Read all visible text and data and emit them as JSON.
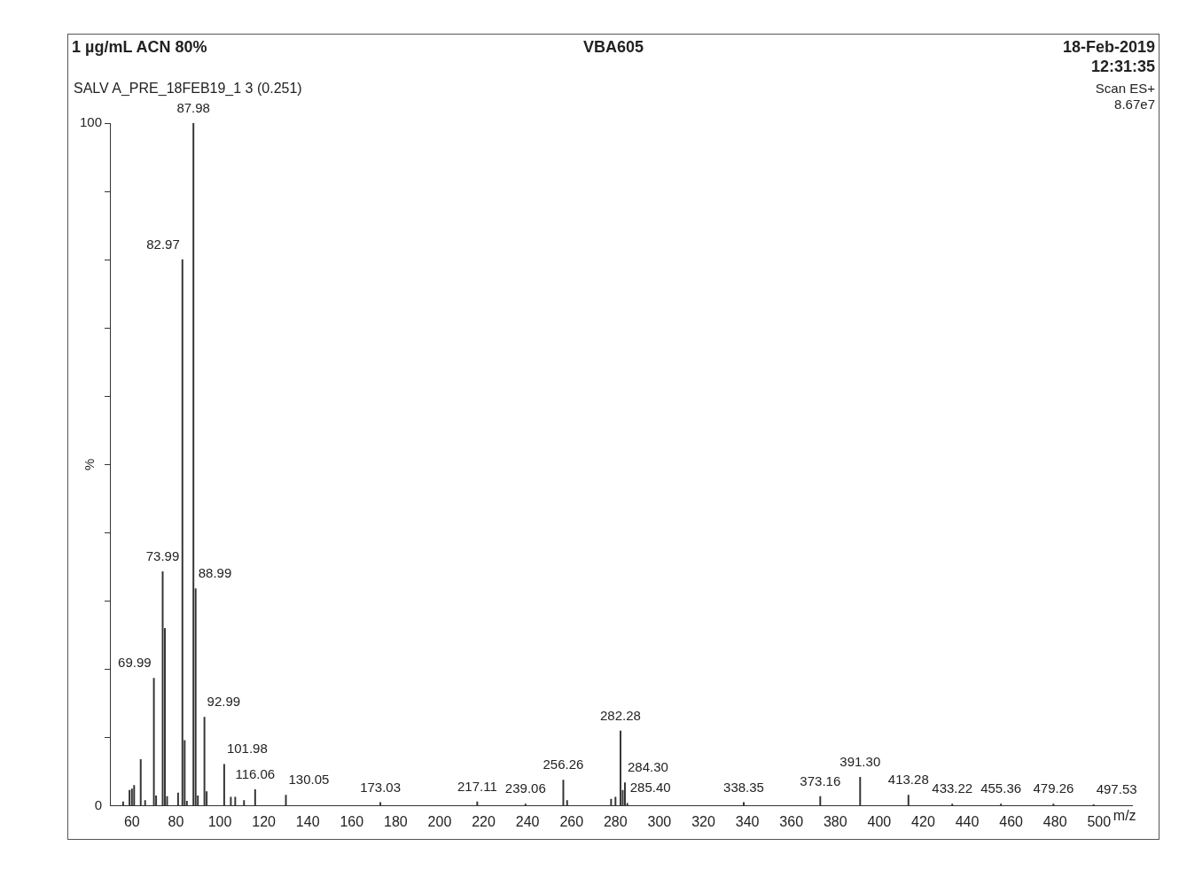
{
  "chart_data": {
    "type": "bar",
    "title": "1 µg/mL ACN 80%",
    "subtitle": "VBA605",
    "xlabel": "m/z",
    "ylabel": "%",
    "x": [
      56,
      58.9,
      60,
      61,
      64,
      66,
      69.99,
      71,
      73.99,
      75,
      76,
      81,
      82.97,
      84,
      85,
      87.98,
      88.99,
      90,
      92.99,
      94,
      101.98,
      105,
      107,
      111,
      116.06,
      130.05,
      173.03,
      217.11,
      239.06,
      256.26,
      258,
      278,
      280,
      282.28,
      283.3,
      284.3,
      285.4,
      338.35,
      373.16,
      391.3,
      413.28,
      433.22,
      455.36,
      479.26,
      497.53
    ],
    "values": [
      0.6,
      2.3,
      2.5,
      3,
      6.8,
      0.8,
      18.7,
      1.5,
      34.3,
      26,
      1.4,
      1.9,
      80,
      9.6,
      0.7,
      100,
      31.8,
      1.5,
      13,
      2.1,
      6.1,
      1.3,
      1.3,
      0.8,
      2.4,
      1.6,
      0.5,
      0.6,
      0.3,
      3.8,
      0.8,
      1,
      1.3,
      11,
      2.3,
      3.4,
      0.4,
      0.5,
      1.4,
      4.2,
      1.6,
      0.3,
      0.3,
      0.3,
      0.2
    ],
    "color": "#333333",
    "xlim": [
      50,
      515
    ],
    "xticks": [
      60,
      80,
      100,
      120,
      140,
      160,
      180,
      200,
      220,
      240,
      260,
      280,
      300,
      320,
      340,
      360,
      380,
      400,
      420,
      440,
      460,
      480,
      500
    ],
    "ylim": [
      0,
      100
    ],
    "yticks": [
      0,
      {
        "value": 10,
        "label": null
      },
      {
        "value": 20,
        "label": null
      },
      {
        "value": 30,
        "label": null
      },
      {
        "value": 40,
        "label": null
      },
      {
        "value": 50,
        "label": null
      },
      {
        "value": 60,
        "label": null
      },
      {
        "value": 70,
        "label": null
      },
      {
        "value": 80,
        "label": null
      },
      {
        "value": 90,
        "label": null
      },
      100
    ],
    "grid": false,
    "legend": false,
    "annotations": [
      "18-Feb-2019",
      "12:31:35",
      "SALV A_PRE_18FEB19_1 3 (0.251)",
      "Scan ES+",
      "8.67e7",
      {
        "text": "87.98",
        "x": 87.98,
        "y": 100
      },
      {
        "text": "82.97",
        "x": 82.97,
        "y": 80
      },
      {
        "text": "73.99",
        "x": 73.99,
        "y": 34.3
      },
      {
        "text": "88.99",
        "x": 88.99,
        "y": 31.8
      },
      {
        "text": "69.99",
        "x": 69.99,
        "y": 18.7
      },
      {
        "text": "92.99",
        "x": 92.99,
        "y": 13
      },
      {
        "text": "101.98",
        "x": 101.98,
        "y": 6.1
      },
      {
        "text": "116.06",
        "x": 116.06,
        "y": 2.4
      },
      {
        "text": "130.05",
        "x": 130.05,
        "y": 1.6
      },
      {
        "text": "173.03",
        "x": 173.03,
        "y": 0.5
      },
      {
        "text": "217.11",
        "x": 217.11,
        "y": 0.6
      },
      {
        "text": "239.06",
        "x": 239.06,
        "y": 0.3
      },
      {
        "text": "256.26",
        "x": 256.26,
        "y": 3.8
      },
      {
        "text": "282.28",
        "x": 282.28,
        "y": 11
      },
      {
        "text": "284.30",
        "x": 284.3,
        "y": 3.4
      },
      {
        "text": "285.40",
        "x": 285.4,
        "y": 0.4
      },
      {
        "text": "338.35",
        "x": 338.35,
        "y": 0.5
      },
      {
        "text": "373.16",
        "x": 373.16,
        "y": 1.4
      },
      {
        "text": "391.30",
        "x": 391.3,
        "y": 4.2
      },
      {
        "text": "413.28",
        "x": 413.28,
        "y": 1.6
      },
      {
        "text": "433.22",
        "x": 433.22,
        "y": 0.3
      },
      {
        "text": "455.36",
        "x": 455.36,
        "y": 0.3
      },
      {
        "text": "479.26",
        "x": 479.26,
        "y": 0.3
      },
      {
        "text": "497.53",
        "x": 497.53,
        "y": 0.2
      }
    ]
  }
}
